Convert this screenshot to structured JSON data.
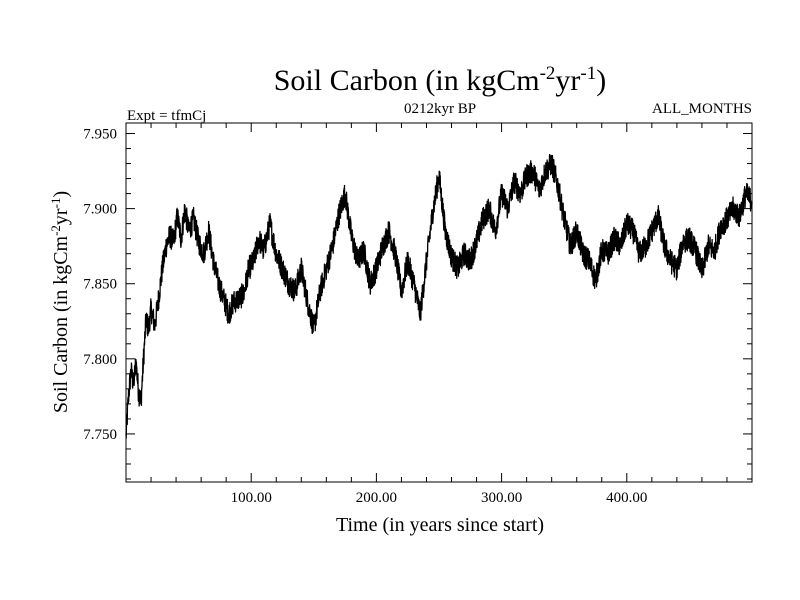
{
  "chart_data": {
    "type": "line",
    "title": {
      "prefix": "Soil Carbon (in kgCm",
      "sup1": "-2",
      "mid": "yr",
      "sup2": "-1",
      "suffix": ")"
    },
    "subtitle_left": "Expt = tfmCj",
    "subtitle_center": "0212kyr BP",
    "subtitle_right": "ALL_MONTHS",
    "xlabel": "Time (in years since start)",
    "ylabel": {
      "prefix": "Soil Carbon (in kgCm",
      "sup1": "-2",
      "mid": "yr",
      "sup2": "-1",
      "suffix": ")"
    },
    "xlim": [
      0,
      500
    ],
    "ylim": [
      7.718,
      7.957
    ],
    "x_ticks": [
      100,
      200,
      300,
      400
    ],
    "x_tick_labels": [
      "100.00",
      "200.00",
      "300.00",
      "400.00"
    ],
    "y_ticks": [
      7.75,
      7.8,
      7.85,
      7.9,
      7.95
    ],
    "y_tick_labels": [
      "7.750",
      "7.800",
      "7.850",
      "7.900",
      "7.950"
    ],
    "grid": false,
    "line_color": "#000000",
    "series": [
      {
        "name": "Soil Carbon",
        "x": [
          0,
          2,
          4,
          6,
          8,
          10,
          12,
          14,
          16,
          18,
          20,
          23,
          26,
          29,
          32,
          35,
          38,
          41,
          44,
          47,
          50,
          54,
          58,
          62,
          66,
          70,
          74,
          78,
          82,
          86,
          90,
          94,
          98,
          102,
          106,
          110,
          115,
          120,
          125,
          130,
          135,
          140,
          145,
          150,
          155,
          160,
          165,
          170,
          175,
          180,
          185,
          190,
          195,
          200,
          205,
          210,
          215,
          220,
          225,
          230,
          235,
          240,
          245,
          250,
          255,
          260,
          265,
          270,
          275,
          280,
          285,
          290,
          295,
          300,
          305,
          310,
          315,
          320,
          325,
          330,
          335,
          340,
          345,
          350,
          355,
          360,
          365,
          370,
          375,
          380,
          385,
          390,
          395,
          400,
          405,
          410,
          415,
          420,
          425,
          430,
          435,
          440,
          445,
          450,
          455,
          460,
          465,
          470,
          475,
          480,
          485,
          490,
          495,
          500
        ],
        "y": [
          7.748,
          7.775,
          7.792,
          7.783,
          7.798,
          7.778,
          7.772,
          7.8,
          7.826,
          7.82,
          7.833,
          7.822,
          7.84,
          7.86,
          7.875,
          7.882,
          7.878,
          7.895,
          7.88,
          7.9,
          7.885,
          7.893,
          7.878,
          7.87,
          7.885,
          7.864,
          7.85,
          7.84,
          7.83,
          7.838,
          7.84,
          7.843,
          7.86,
          7.865,
          7.88,
          7.872,
          7.89,
          7.87,
          7.86,
          7.85,
          7.845,
          7.86,
          7.838,
          7.82,
          7.845,
          7.86,
          7.875,
          7.896,
          7.91,
          7.882,
          7.865,
          7.872,
          7.85,
          7.86,
          7.875,
          7.885,
          7.87,
          7.845,
          7.865,
          7.85,
          7.83,
          7.865,
          7.898,
          7.922,
          7.885,
          7.868,
          7.86,
          7.87,
          7.865,
          7.878,
          7.893,
          7.9,
          7.885,
          7.91,
          7.9,
          7.918,
          7.91,
          7.922,
          7.925,
          7.912,
          7.925,
          7.93,
          7.915,
          7.893,
          7.875,
          7.885,
          7.87,
          7.865,
          7.852,
          7.872,
          7.87,
          7.88,
          7.875,
          7.89,
          7.885,
          7.87,
          7.875,
          7.885,
          7.895,
          7.875,
          7.865,
          7.86,
          7.878,
          7.88,
          7.872,
          7.858,
          7.875,
          7.872,
          7.888,
          7.893,
          7.9,
          7.895,
          7.91,
          7.905
        ]
      }
    ]
  }
}
